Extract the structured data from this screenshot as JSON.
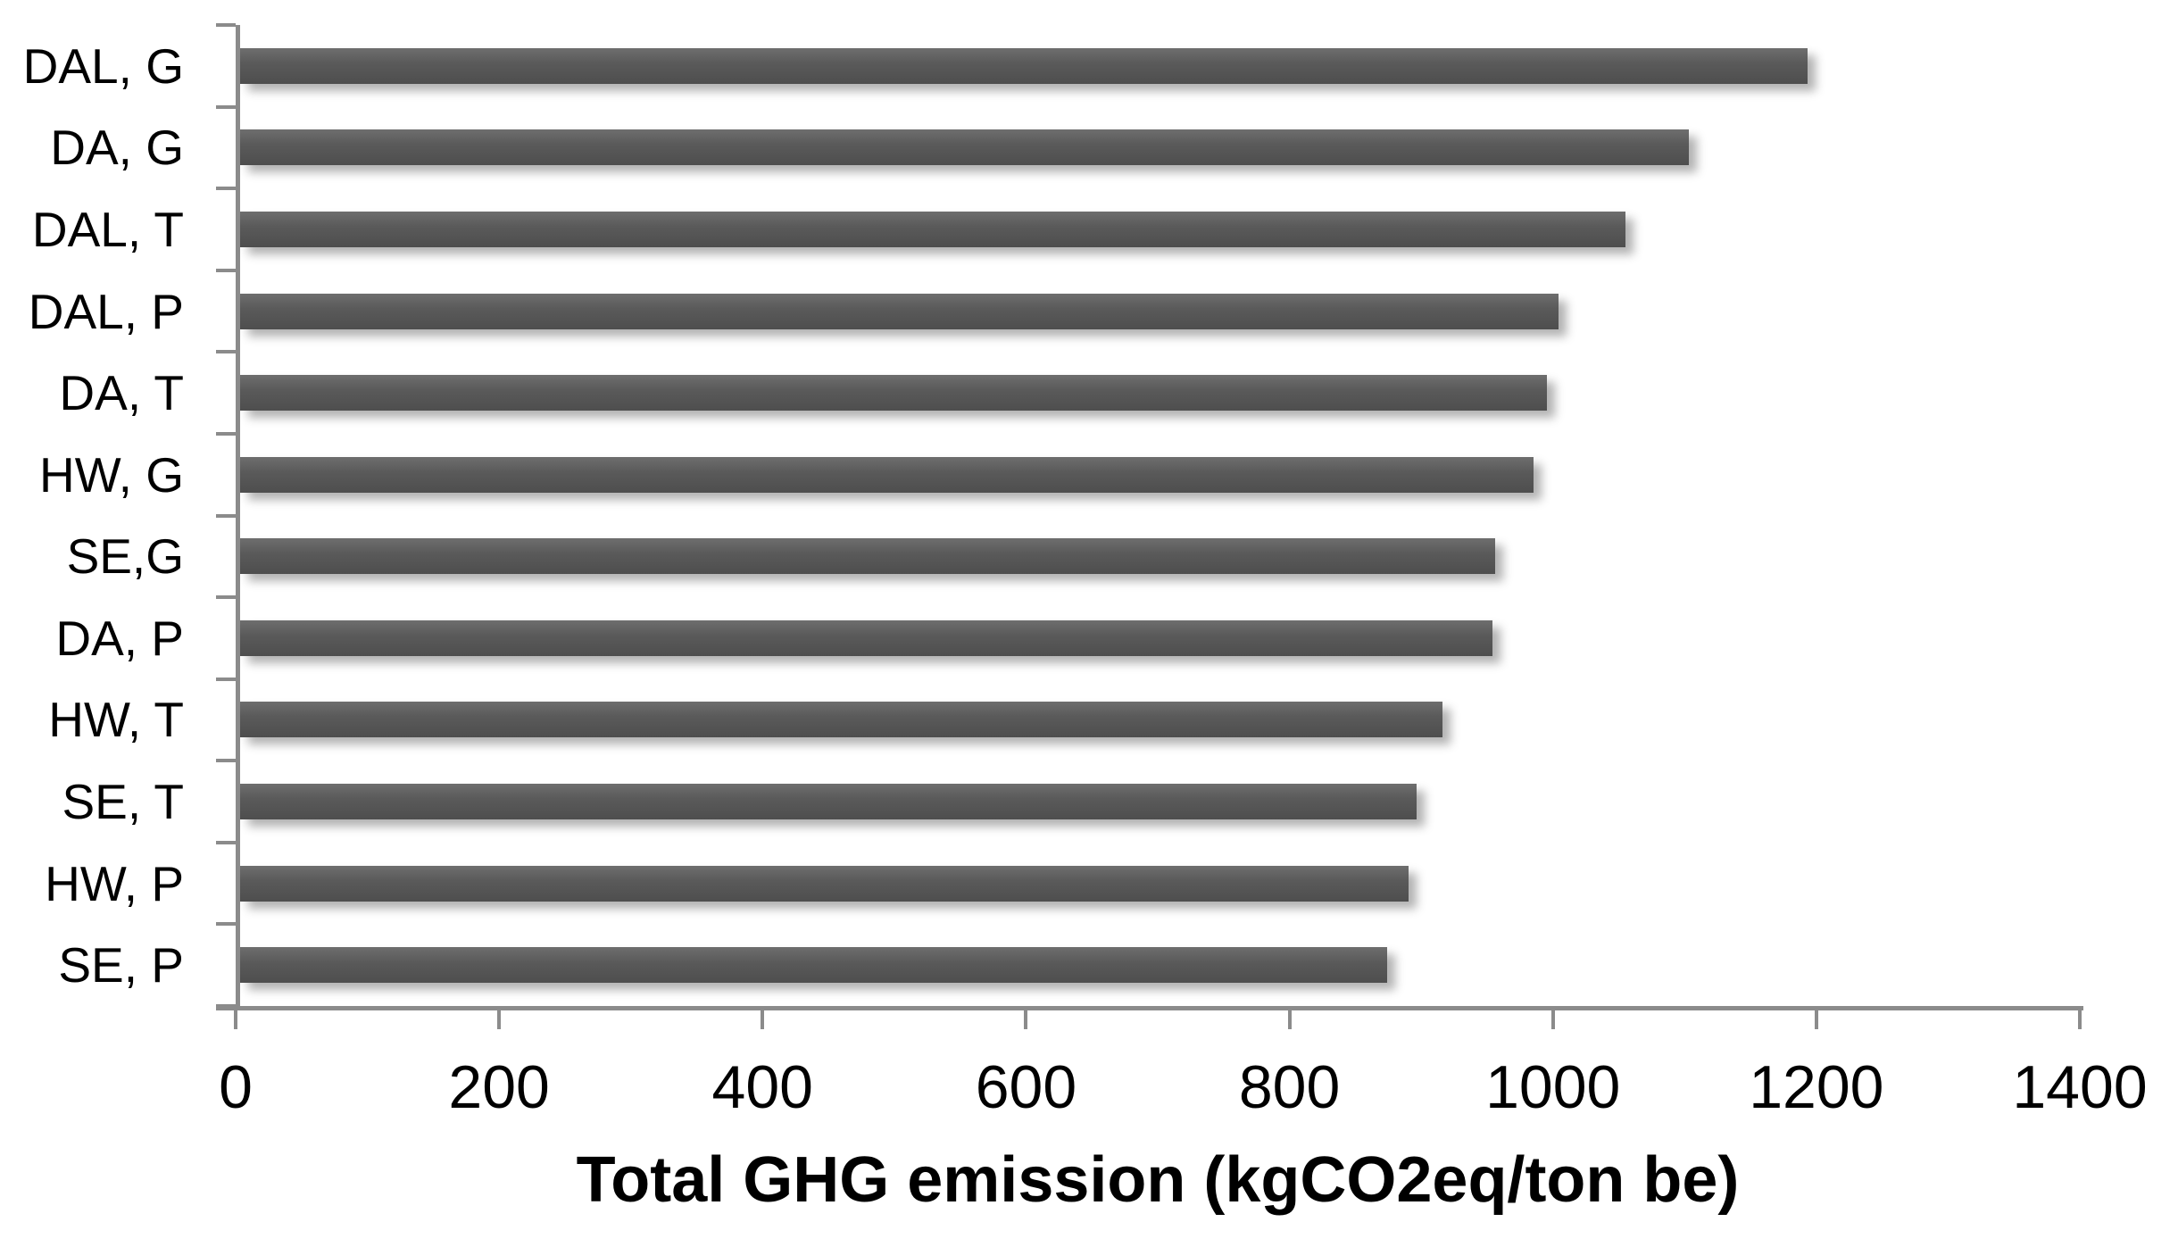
{
  "chart_data": {
    "type": "bar",
    "orientation": "horizontal",
    "title": "",
    "xlabel": "Total GHG emission (kgCO2eq/ton be)",
    "ylabel": "",
    "categories": [
      "DAL, G",
      "DA, G",
      "DAL, T",
      "DAL, P",
      "DA, T",
      "HW, G",
      "SE,G",
      "DA, P",
      "HW, T",
      "SE, T",
      "HW, P",
      "SE, P"
    ],
    "values": [
      1190,
      1100,
      1052,
      1001,
      992,
      982,
      953,
      951,
      913,
      893,
      887,
      871
    ],
    "x_ticks": [
      0,
      200,
      400,
      600,
      800,
      1000,
      1200,
      1400
    ],
    "xlim": [
      0,
      1400
    ],
    "grid": false,
    "legend": "none",
    "colors": {
      "bar_top": "#6e6e6e",
      "bar_mid": "#5a5a5a",
      "bar_bottom": "#4e4e4e",
      "axis": "#8b8b8b",
      "text": "#000000"
    }
  }
}
